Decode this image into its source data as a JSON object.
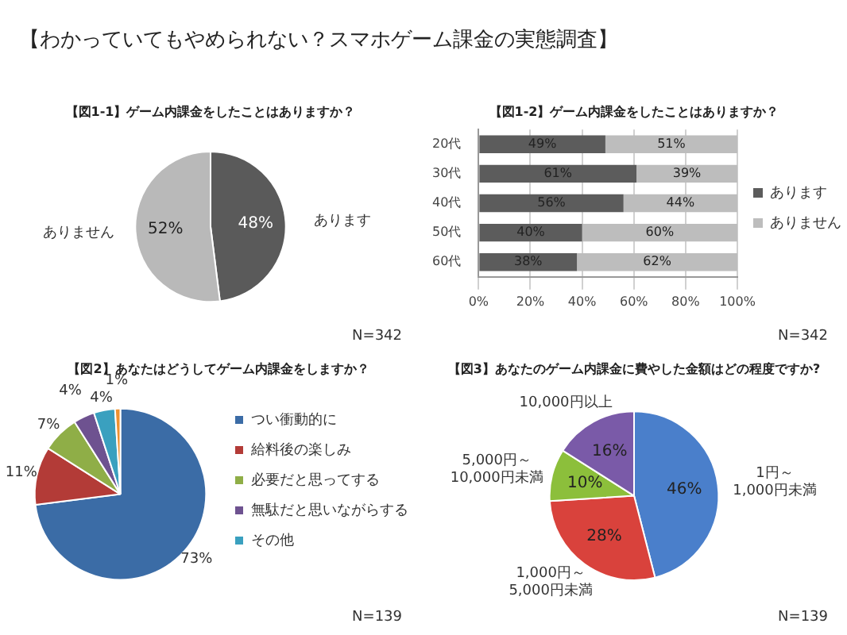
{
  "chart_data": [
    {
      "type": "other",
      "title": "【わかっていてもやめられない？スマホゲーム課金の実態調査】"
    },
    {
      "type": "pie",
      "title": "【図1-1】ゲーム内課金をしたことはありますか？",
      "categories": [
        "あります",
        "ありません"
      ],
      "values": [
        48,
        52
      ],
      "colors": [
        "#5a5a5a",
        "#b9b9b9"
      ],
      "value_labels": [
        "48%",
        "52%"
      ],
      "annotations": [
        "N=342"
      ]
    },
    {
      "type": "bar",
      "title": "【図1-2】ゲーム内課金をしたことはありますか？",
      "orientation": "horizontal",
      "stacked": true,
      "categories": [
        "20代",
        "30代",
        "40代",
        "50代",
        "60代"
      ],
      "xlim": [
        0,
        100
      ],
      "xticks": [
        {
          "value": 0,
          "label": "0%"
        },
        {
          "value": 20,
          "label": "20%"
        },
        {
          "value": 40,
          "label": "40%"
        },
        {
          "value": 60,
          "label": "60%"
        },
        {
          "value": 80,
          "label": "80%"
        },
        {
          "value": 100,
          "label": "100%"
        }
      ],
      "grid": "x",
      "legend": "right",
      "series": [
        {
          "name": "あります",
          "color": "#5c5c5c",
          "values": [
            49,
            61,
            56,
            40,
            38
          ],
          "value_labels": [
            "49%",
            "61%",
            "56%",
            "40%",
            "38%"
          ]
        },
        {
          "name": "ありません",
          "color": "#bdbdbd",
          "values": [
            51,
            39,
            44,
            60,
            62
          ],
          "value_labels": [
            "51%",
            "39%",
            "44%",
            "60%",
            "62%"
          ]
        }
      ],
      "annotations": [
        "N=342"
      ]
    },
    {
      "type": "pie",
      "title": "【図2】あなたはどうしてゲーム内課金をしますか？",
      "legend": "right",
      "categories": [
        "つい衝動的に",
        "給料後の楽しみ",
        "必要だと思ってする",
        "無駄だと思いながらする",
        "その他",
        null
      ],
      "values": [
        73,
        11,
        7,
        4,
        4,
        1
      ],
      "colors": [
        "#3b6ca6",
        "#b33b37",
        "#8fae47",
        "#6e5290",
        "#3aa0bf",
        "#ee9130"
      ],
      "value_labels": [
        "73%",
        "11%",
        "7%",
        "4%",
        "4%",
        "1%"
      ],
      "annotations": [
        "N=139"
      ]
    },
    {
      "type": "pie",
      "title": "【図3】あなたのゲーム内課金に費やした金額はどの程度ですか?",
      "categories": [
        "1円～1,000円未満",
        "1,000円～5,000円未満",
        "5,000円～10,000円未満",
        "10,000円以上"
      ],
      "values": [
        46,
        28,
        10,
        16
      ],
      "colors": [
        "#4a7fcb",
        "#d9423c",
        "#8cbf3b",
        "#7a5aa8"
      ],
      "value_labels": [
        "46%",
        "28%",
        "10%",
        "16%"
      ],
      "annotations": [
        "N=139"
      ]
    }
  ]
}
